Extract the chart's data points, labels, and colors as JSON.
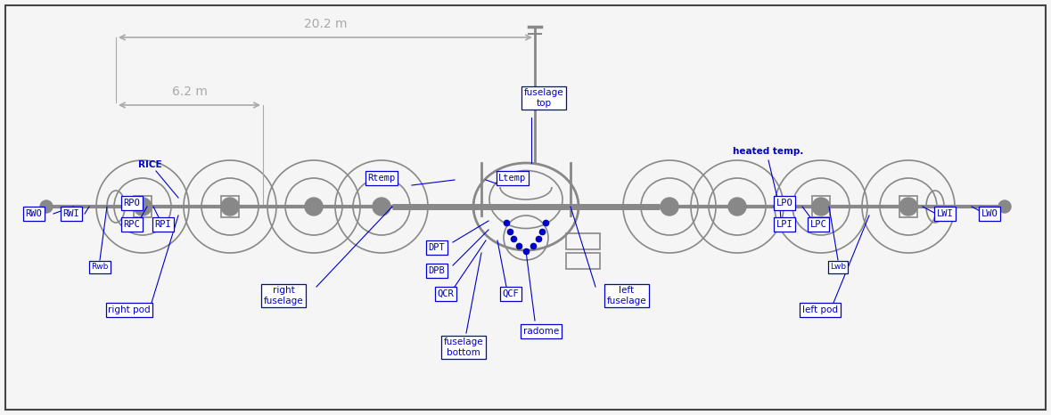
{
  "bg_color": "#f5f5f5",
  "border_color": "#444444",
  "aircraft_color": "#888888",
  "label_color": "#0000cc",
  "dim_color": "#aaaaaa",
  "fig_width": 11.79,
  "fig_height": 4.66,
  "dpi": 100,
  "xlim": [
    0,
    1179
  ],
  "ylim": [
    0,
    466
  ]
}
